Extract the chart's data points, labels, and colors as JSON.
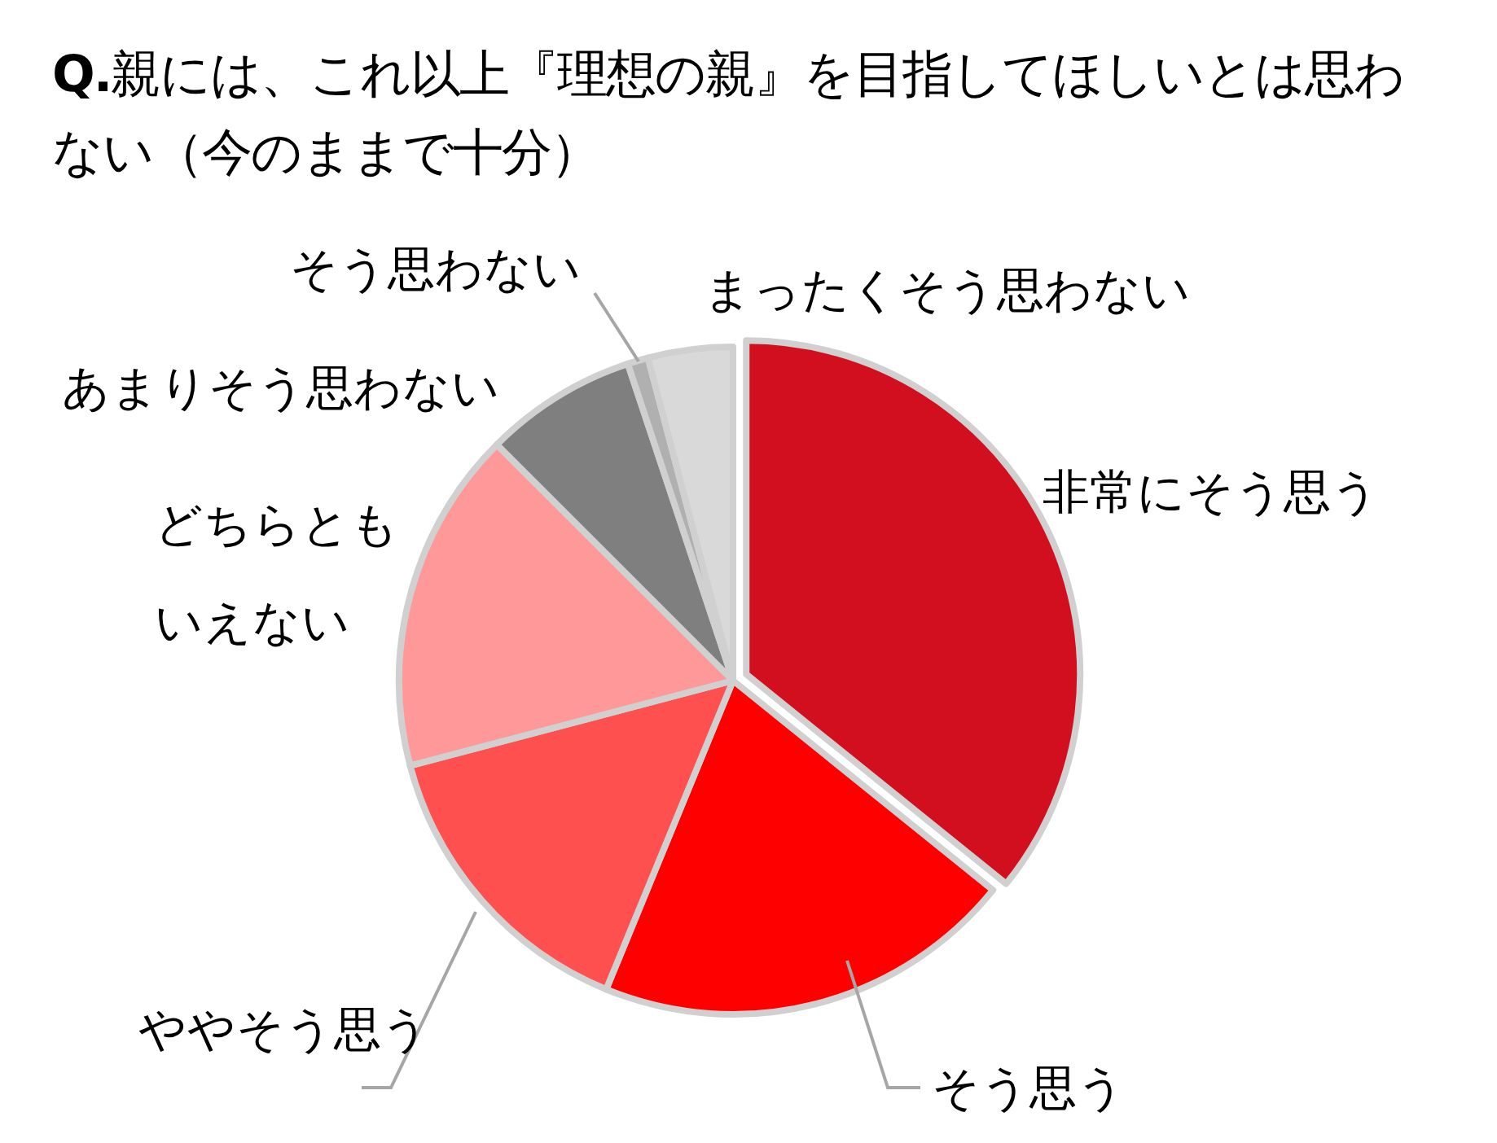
{
  "chart_data": {
    "type": "pie",
    "title": "**Q.**親には、これ以上『理想の親』を目指してほしいとは思わない（今のままで十分）",
    "categories": [
      "非常にそう思う",
      "そう思う",
      "ややそう思う",
      "どちらともいえない",
      "あまりそう思わない",
      "そう思わない",
      "まったくそう思わない"
    ],
    "values": [
      35.8,
      20.4,
      14.7,
      16.6,
      7.4,
      1.0,
      4.1
    ],
    "colors": [
      "#d20f1e",
      "#ff0000",
      "#ff5050",
      "#ff9999",
      "#7f7f7f",
      "#b0b0b0",
      "#d9d9d9"
    ]
  }
}
